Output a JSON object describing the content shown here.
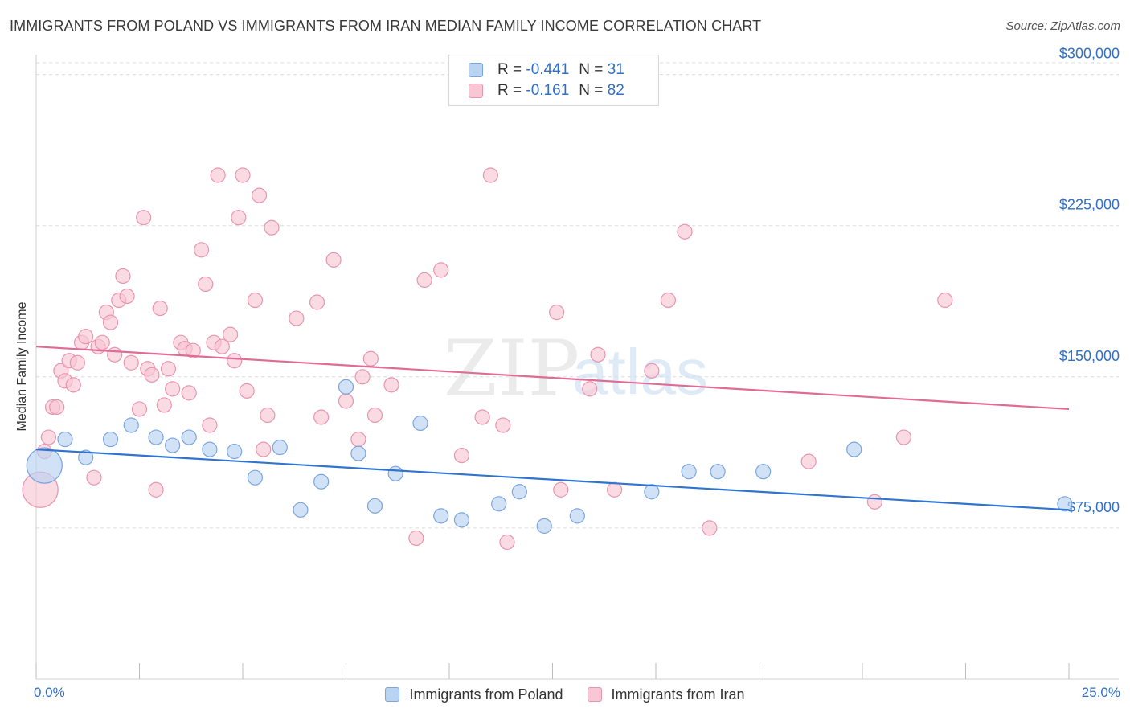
{
  "title": "IMMIGRANTS FROM POLAND VS IMMIGRANTS FROM IRAN MEDIAN FAMILY INCOME CORRELATION CHART",
  "source": "Source: ZipAtlas.com",
  "watermark": {
    "zip": "ZIP",
    "atlas": "atlas"
  },
  "colors": {
    "poland_fill": "#b9d3f3",
    "poland_stroke": "#7aa6de",
    "poland_line": "#2f74cf",
    "iran_fill": "#f8c6d4",
    "iran_stroke": "#e995b0",
    "iran_line": "#e06b94",
    "axis_text": "#2f6fc6"
  },
  "legend_top": [
    {
      "r_label": "R =",
      "r_value": "-0.441",
      "n_label": "N =",
      "n_value": "31"
    },
    {
      "r_label": "R =",
      "r_value": "-0.161",
      "n_label": "N =",
      "n_value": "82"
    }
  ],
  "legend_bottom": [
    "Immigrants from Poland",
    "Immigrants from Iran"
  ],
  "chart_data": {
    "type": "scatter",
    "title": "IMMIGRANTS FROM POLAND VS IMMIGRANTS FROM IRAN MEDIAN FAMILY INCOME CORRELATION CHART",
    "xlabel": "",
    "ylabel": "Median Family Income",
    "xlim": [
      0,
      25
    ],
    "ylim": [
      0,
      315000
    ],
    "x_tick_labels": [
      "0.0%",
      "25.0%"
    ],
    "y_ticks": [
      75000,
      150000,
      225000,
      300000
    ],
    "y_tick_labels": [
      "$75,000",
      "$150,000",
      "$225,000",
      "$300,000"
    ],
    "grid": true,
    "legend_position": "top-center",
    "series": [
      {
        "name": "Immigrants from Poland",
        "r": -0.441,
        "n": 31,
        "trend": {
          "x": [
            0,
            25
          ],
          "y": [
            114000,
            84000
          ]
        },
        "points": [
          {
            "x": 0.2,
            "y": 106000,
            "big": true
          },
          {
            "x": 0.7,
            "y": 119000
          },
          {
            "x": 1.2,
            "y": 110000
          },
          {
            "x": 1.8,
            "y": 119000
          },
          {
            "x": 2.3,
            "y": 126000
          },
          {
            "x": 2.9,
            "y": 120000
          },
          {
            "x": 3.3,
            "y": 116000
          },
          {
            "x": 3.7,
            "y": 120000
          },
          {
            "x": 4.2,
            "y": 114000
          },
          {
            "x": 4.8,
            "y": 113000
          },
          {
            "x": 5.3,
            "y": 100000
          },
          {
            "x": 5.9,
            "y": 115000
          },
          {
            "x": 6.4,
            "y": 84000
          },
          {
            "x": 6.9,
            "y": 98000
          },
          {
            "x": 7.5,
            "y": 145000
          },
          {
            "x": 7.8,
            "y": 112000
          },
          {
            "x": 8.2,
            "y": 86000
          },
          {
            "x": 8.7,
            "y": 102000
          },
          {
            "x": 9.3,
            "y": 127000
          },
          {
            "x": 9.8,
            "y": 81000
          },
          {
            "x": 10.3,
            "y": 79000
          },
          {
            "x": 11.2,
            "y": 87000
          },
          {
            "x": 11.7,
            "y": 93000
          },
          {
            "x": 12.3,
            "y": 76000
          },
          {
            "x": 13.1,
            "y": 81000
          },
          {
            "x": 14.9,
            "y": 93000
          },
          {
            "x": 15.8,
            "y": 103000
          },
          {
            "x": 16.5,
            "y": 103000
          },
          {
            "x": 17.6,
            "y": 103000
          },
          {
            "x": 19.8,
            "y": 114000
          },
          {
            "x": 24.9,
            "y": 87000
          }
        ]
      },
      {
        "name": "Immigrants from Iran",
        "r": -0.161,
        "n": 82,
        "trend": {
          "x": [
            0,
            25
          ],
          "y": [
            165000,
            134000
          ]
        },
        "points": [
          {
            "x": 0.1,
            "y": 94000,
            "big": true
          },
          {
            "x": 0.2,
            "y": 113000
          },
          {
            "x": 0.3,
            "y": 120000
          },
          {
            "x": 0.4,
            "y": 135000
          },
          {
            "x": 0.5,
            "y": 135000
          },
          {
            "x": 0.6,
            "y": 153000
          },
          {
            "x": 0.7,
            "y": 148000
          },
          {
            "x": 0.8,
            "y": 158000
          },
          {
            "x": 0.9,
            "y": 146000
          },
          {
            "x": 1.0,
            "y": 157000
          },
          {
            "x": 1.1,
            "y": 167000
          },
          {
            "x": 1.2,
            "y": 170000
          },
          {
            "x": 1.4,
            "y": 100000
          },
          {
            "x": 1.5,
            "y": 165000
          },
          {
            "x": 1.6,
            "y": 167000
          },
          {
            "x": 1.7,
            "y": 182000
          },
          {
            "x": 1.8,
            "y": 177000
          },
          {
            "x": 1.9,
            "y": 161000
          },
          {
            "x": 2.0,
            "y": 188000
          },
          {
            "x": 2.1,
            "y": 200000
          },
          {
            "x": 2.2,
            "y": 190000
          },
          {
            "x": 2.3,
            "y": 157000
          },
          {
            "x": 2.5,
            "y": 134000
          },
          {
            "x": 2.6,
            "y": 229000
          },
          {
            "x": 2.7,
            "y": 154000
          },
          {
            "x": 2.8,
            "y": 151000
          },
          {
            "x": 2.9,
            "y": 94000
          },
          {
            "x": 3.0,
            "y": 184000
          },
          {
            "x": 3.1,
            "y": 136000
          },
          {
            "x": 3.2,
            "y": 154000
          },
          {
            "x": 3.3,
            "y": 144000
          },
          {
            "x": 3.5,
            "y": 167000
          },
          {
            "x": 3.6,
            "y": 164000
          },
          {
            "x": 3.7,
            "y": 142000
          },
          {
            "x": 3.8,
            "y": 163000
          },
          {
            "x": 4.0,
            "y": 213000
          },
          {
            "x": 4.1,
            "y": 196000
          },
          {
            "x": 4.2,
            "y": 126000
          },
          {
            "x": 4.3,
            "y": 167000
          },
          {
            "x": 4.4,
            "y": 250000
          },
          {
            "x": 4.5,
            "y": 165000
          },
          {
            "x": 4.7,
            "y": 171000
          },
          {
            "x": 4.8,
            "y": 158000
          },
          {
            "x": 4.9,
            "y": 229000
          },
          {
            "x": 5.0,
            "y": 250000
          },
          {
            "x": 5.1,
            "y": 143000
          },
          {
            "x": 5.3,
            "y": 188000
          },
          {
            "x": 5.4,
            "y": 240000
          },
          {
            "x": 5.5,
            "y": 114000
          },
          {
            "x": 5.6,
            "y": 131000
          },
          {
            "x": 5.7,
            "y": 224000
          },
          {
            "x": 6.3,
            "y": 179000
          },
          {
            "x": 6.8,
            "y": 187000
          },
          {
            "x": 6.9,
            "y": 130000
          },
          {
            "x": 7.2,
            "y": 208000
          },
          {
            "x": 7.5,
            "y": 138000
          },
          {
            "x": 7.8,
            "y": 119000
          },
          {
            "x": 7.9,
            "y": 150000
          },
          {
            "x": 8.1,
            "y": 159000
          },
          {
            "x": 8.2,
            "y": 131000
          },
          {
            "x": 8.6,
            "y": 146000
          },
          {
            "x": 9.2,
            "y": 70000
          },
          {
            "x": 9.4,
            "y": 198000
          },
          {
            "x": 9.8,
            "y": 203000
          },
          {
            "x": 10.3,
            "y": 111000
          },
          {
            "x": 10.8,
            "y": 130000
          },
          {
            "x": 11.0,
            "y": 250000
          },
          {
            "x": 11.3,
            "y": 126000
          },
          {
            "x": 11.4,
            "y": 68000
          },
          {
            "x": 12.6,
            "y": 182000
          },
          {
            "x": 12.7,
            "y": 94000
          },
          {
            "x": 13.4,
            "y": 144000
          },
          {
            "x": 13.6,
            "y": 161000
          },
          {
            "x": 14.0,
            "y": 94000
          },
          {
            "x": 14.9,
            "y": 153000
          },
          {
            "x": 15.3,
            "y": 188000
          },
          {
            "x": 15.7,
            "y": 222000
          },
          {
            "x": 16.3,
            "y": 75000
          },
          {
            "x": 18.7,
            "y": 108000
          },
          {
            "x": 20.3,
            "y": 88000
          },
          {
            "x": 21.0,
            "y": 120000
          },
          {
            "x": 22.0,
            "y": 188000
          }
        ]
      }
    ]
  }
}
